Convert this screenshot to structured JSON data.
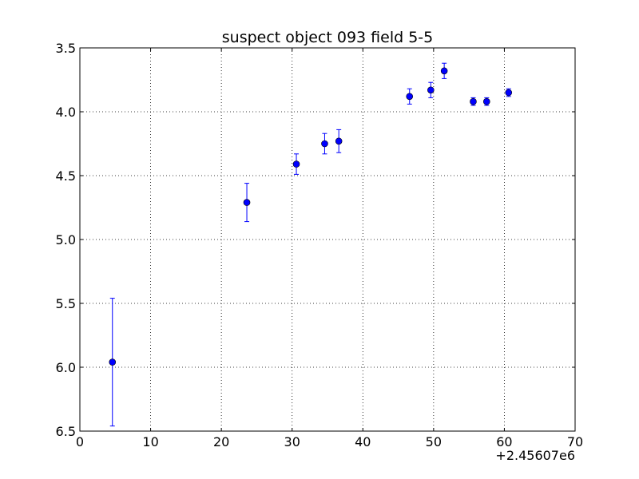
{
  "chart_data": {
    "type": "scatter",
    "title": "suspect object 093 field 5-5",
    "xlabel": "",
    "ylabel": "",
    "xlim": [
      0,
      70
    ],
    "ylim": [
      3.5,
      6.5
    ],
    "y_inverted": true,
    "grid": true,
    "x_ticks": [
      "0",
      "10",
      "20",
      "30",
      "40",
      "50",
      "60",
      "70"
    ],
    "y_ticks": [
      "3.5",
      "4.0",
      "4.5",
      "5.0",
      "5.5",
      "6.0",
      "6.5"
    ],
    "x_offset_label": "+2.45607e6",
    "marker_color": "#0000ff",
    "series": [
      {
        "x": [
          4.6,
          23.6,
          30.6,
          34.6,
          36.6,
          46.6,
          49.6,
          51.5,
          55.6,
          57.5,
          60.6
        ],
        "y": [
          5.96,
          4.71,
          4.41,
          4.25,
          4.23,
          3.88,
          3.83,
          3.68,
          3.92,
          3.92,
          3.85
        ],
        "yerr": [
          0.5,
          0.15,
          0.08,
          0.08,
          0.09,
          0.06,
          0.06,
          0.06,
          0.03,
          0.03,
          0.03
        ]
      }
    ]
  }
}
